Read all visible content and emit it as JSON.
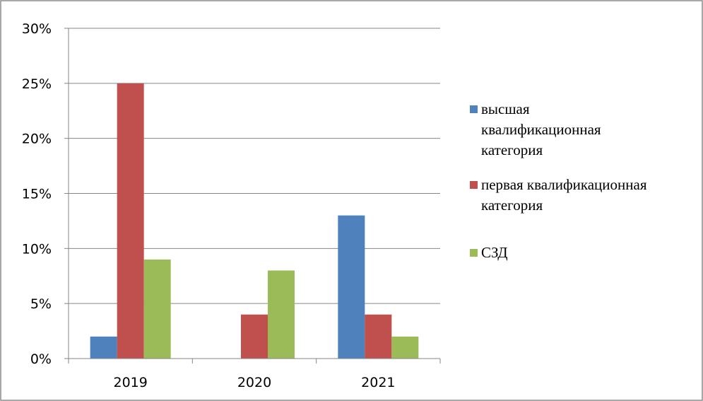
{
  "chart_data": {
    "type": "bar",
    "categories": [
      "2019",
      "2020",
      "2021"
    ],
    "series": [
      {
        "name": "высшая квалификационная категория",
        "color": "#4F81BD",
        "values": [
          2,
          0,
          13
        ]
      },
      {
        "name": "первая квалификационная категория",
        "color": "#C0504D",
        "values": [
          25,
          4,
          4
        ]
      },
      {
        "name": "СЗД",
        "color": "#9BBB59",
        "values": [
          9,
          8,
          2
        ]
      }
    ],
    "y_ticks": [
      "0%",
      "5%",
      "10%",
      "15%",
      "20%",
      "25%",
      "30%"
    ],
    "ylim": [
      0,
      30
    ],
    "unit": "%",
    "grid": true,
    "legend_position": "right",
    "legend": [
      {
        "lines": [
          "высшая",
          "квалификационная",
          "категория"
        ]
      },
      {
        "lines": [
          "первая квалификационная",
          "категория"
        ]
      },
      {
        "lines": [
          "СЗД"
        ]
      }
    ]
  }
}
